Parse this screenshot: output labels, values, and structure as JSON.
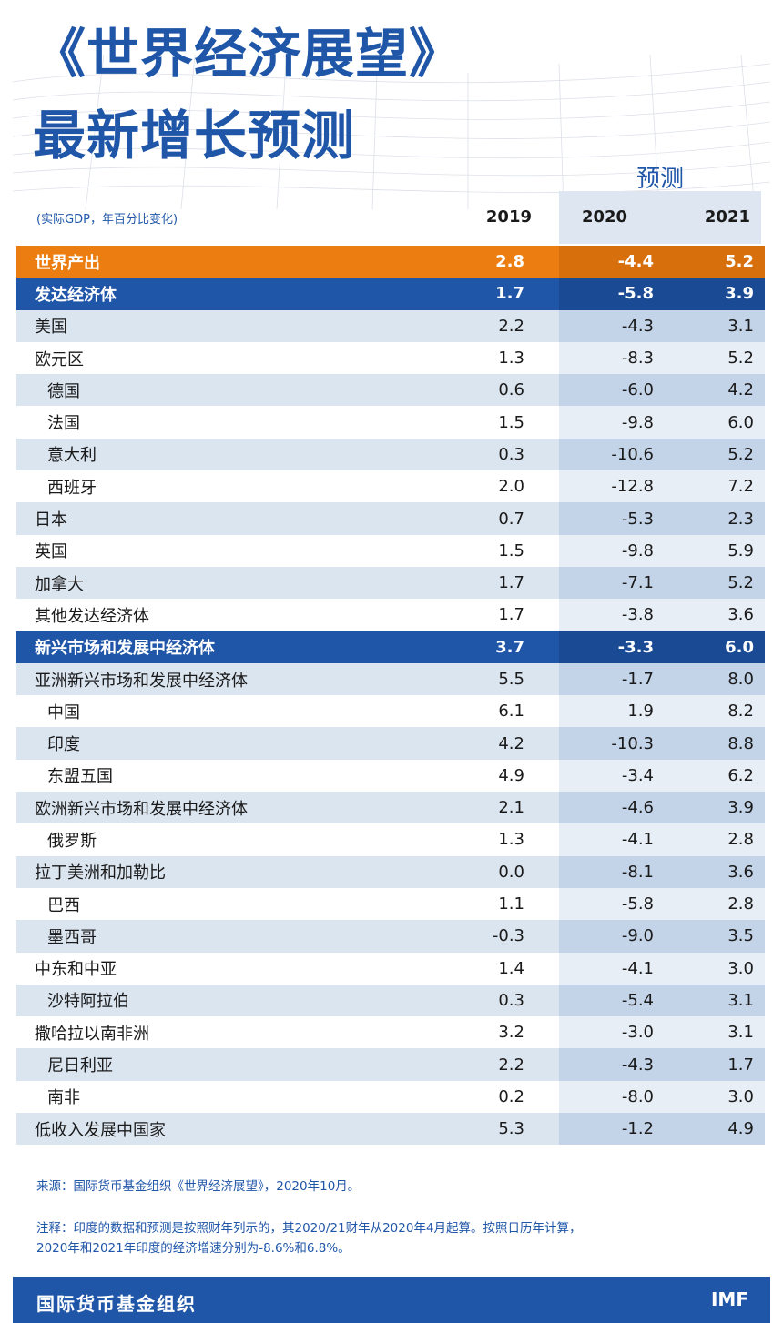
{
  "header": {
    "title_line1": "《世界经济展望》",
    "title_line2": "最新增长预测",
    "forecast_label": "预测",
    "unit_label": "(实际GDP，年百分比变化)",
    "year1": "2019",
    "year2": "2020",
    "year3": "2021"
  },
  "colors": {
    "brand_blue": "#1f56a8",
    "world_orange": "#ec7d11",
    "row_light": "#dbe5f0",
    "forecast_shade": "#c3d3e8"
  },
  "chart_data": {
    "type": "table",
    "title": "《世界经济展望》最新增长预测",
    "subtitle": "(实际GDP，年百分比变化)",
    "columns": [
      "2019",
      "2020",
      "2021"
    ],
    "rows": [
      {
        "label": "世界产出",
        "style": "world",
        "indent": false,
        "values": [
          "2.8",
          "-4.4",
          "5.2"
        ]
      },
      {
        "label": "发达经济体",
        "style": "header",
        "indent": false,
        "values": [
          "1.7",
          "-5.8",
          "3.9"
        ]
      },
      {
        "label": "美国",
        "style": "light",
        "indent": false,
        "values": [
          "2.2",
          "-4.3",
          "3.1"
        ]
      },
      {
        "label": "欧元区",
        "style": "white",
        "indent": false,
        "values": [
          "1.3",
          "-8.3",
          "5.2"
        ]
      },
      {
        "label": "德国",
        "style": "light",
        "indent": true,
        "values": [
          "0.6",
          "-6.0",
          "4.2"
        ]
      },
      {
        "label": "法国",
        "style": "white",
        "indent": true,
        "values": [
          "1.5",
          "-9.8",
          "6.0"
        ]
      },
      {
        "label": "意大利",
        "style": "light",
        "indent": true,
        "values": [
          "0.3",
          "-10.6",
          "5.2"
        ]
      },
      {
        "label": "西班牙",
        "style": "white",
        "indent": true,
        "values": [
          "2.0",
          "-12.8",
          "7.2"
        ]
      },
      {
        "label": "日本",
        "style": "light",
        "indent": false,
        "values": [
          "0.7",
          "-5.3",
          "2.3"
        ]
      },
      {
        "label": "英国",
        "style": "white",
        "indent": false,
        "values": [
          "1.5",
          "-9.8",
          "5.9"
        ]
      },
      {
        "label": "加拿大",
        "style": "light",
        "indent": false,
        "values": [
          "1.7",
          "-7.1",
          "5.2"
        ]
      },
      {
        "label": "其他发达经济体",
        "style": "white",
        "indent": false,
        "values": [
          "1.7",
          "-3.8",
          "3.6"
        ]
      },
      {
        "label": "新兴市场和发展中经济体",
        "style": "header",
        "indent": false,
        "values": [
          "3.7",
          "-3.3",
          "6.0"
        ]
      },
      {
        "label": "亚洲新兴市场和发展中经济体",
        "style": "light",
        "indent": false,
        "values": [
          "5.5",
          "-1.7",
          "8.0"
        ]
      },
      {
        "label": "中国",
        "style": "white",
        "indent": true,
        "values": [
          "6.1",
          "1.9",
          "8.2"
        ]
      },
      {
        "label": "印度",
        "style": "light",
        "indent": true,
        "values": [
          "4.2",
          "-10.3",
          "8.8"
        ]
      },
      {
        "label": "东盟五国",
        "style": "white",
        "indent": true,
        "values": [
          "4.9",
          "-3.4",
          "6.2"
        ]
      },
      {
        "label": "欧洲新兴市场和发展中经济体",
        "style": "light",
        "indent": false,
        "values": [
          "2.1",
          "-4.6",
          "3.9"
        ]
      },
      {
        "label": "俄罗斯",
        "style": "white",
        "indent": true,
        "values": [
          "1.3",
          "-4.1",
          "2.8"
        ]
      },
      {
        "label": "拉丁美洲和加勒比",
        "style": "light",
        "indent": false,
        "values": [
          "0.0",
          "-8.1",
          "3.6"
        ]
      },
      {
        "label": "巴西",
        "style": "white",
        "indent": true,
        "values": [
          "1.1",
          "-5.8",
          "2.8"
        ]
      },
      {
        "label": "墨西哥",
        "style": "light",
        "indent": true,
        "values": [
          "-0.3",
          "-9.0",
          "3.5"
        ]
      },
      {
        "label": "中东和中亚",
        "style": "white",
        "indent": false,
        "values": [
          "1.4",
          "-4.1",
          "3.0"
        ]
      },
      {
        "label": "沙特阿拉伯",
        "style": "light",
        "indent": true,
        "values": [
          "0.3",
          "-5.4",
          "3.1"
        ]
      },
      {
        "label": "撒哈拉以南非洲",
        "style": "white",
        "indent": false,
        "values": [
          "3.2",
          "-3.0",
          "3.1"
        ]
      },
      {
        "label": "尼日利亚",
        "style": "light",
        "indent": true,
        "values": [
          "2.2",
          "-4.3",
          "1.7"
        ]
      },
      {
        "label": "南非",
        "style": "white",
        "indent": true,
        "values": [
          "0.2",
          "-8.0",
          "3.0"
        ]
      },
      {
        "label": "低收入发展中国家",
        "style": "light",
        "indent": false,
        "values": [
          "5.3",
          "-1.2",
          "4.9"
        ]
      }
    ]
  },
  "footer": {
    "source": "来源：国际货币基金组织《世界经济展望》，2020年10月。",
    "note_line1": "注释：印度的数据和预测是按照财年列示的，其2020/21财年从2020年4月起算。按照日历年计算，",
    "note_line2": "2020年和2021年印度的经济增速分别为-8.6%和6.8%。",
    "org_name": "国际货币基金组织",
    "logo_text": "IMF"
  }
}
